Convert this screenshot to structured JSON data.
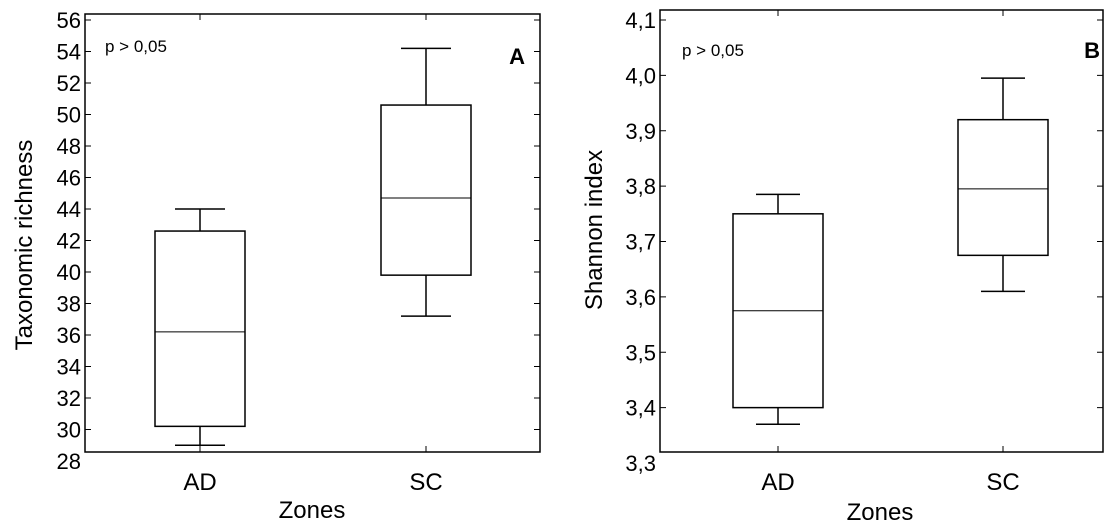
{
  "chart_data": [
    {
      "type": "box",
      "panel_label": "A",
      "annotation": "p > 0,05",
      "xlabel": "Zones",
      "ylabel": "Taxonomic richness",
      "categories": [
        "AD",
        "SC"
      ],
      "ylim": [
        28,
        56
      ],
      "yticks": [
        28,
        30,
        32,
        34,
        36,
        38,
        40,
        42,
        44,
        46,
        48,
        50,
        52,
        54,
        56
      ],
      "ytick_labels": [
        "28",
        "30",
        "32",
        "34",
        "36",
        "38",
        "40",
        "42",
        "44",
        "46",
        "48",
        "50",
        "52",
        "54",
        "56"
      ],
      "boxes": [
        {
          "category": "AD",
          "min": 29.0,
          "q1": 30.2,
          "median": 36.2,
          "q3": 42.6,
          "max": 44.0
        },
        {
          "category": "SC",
          "min": 37.2,
          "q1": 39.8,
          "median": 44.7,
          "q3": 50.6,
          "max": 54.2
        }
      ],
      "grid": false
    },
    {
      "type": "box",
      "panel_label": "B",
      "annotation": "p > 0,05",
      "xlabel": "Zones",
      "ylabel": "Shannon index",
      "categories": [
        "AD",
        "SC"
      ],
      "ylim": [
        3.3,
        4.1
      ],
      "yticks": [
        3.3,
        3.4,
        3.5,
        3.6,
        3.7,
        3.8,
        3.9,
        4.0,
        4.1
      ],
      "ytick_labels": [
        "3,3",
        "3,4",
        "3,5",
        "3,6",
        "3,7",
        "3,8",
        "3,9",
        "4,0",
        "4,1"
      ],
      "boxes": [
        {
          "category": "AD",
          "min": 3.37,
          "q1": 3.4,
          "median": 3.575,
          "q3": 3.75,
          "max": 3.785
        },
        {
          "category": "SC",
          "min": 3.61,
          "q1": 3.675,
          "median": 3.795,
          "q3": 3.92,
          "max": 3.995
        }
      ],
      "grid": false
    }
  ]
}
